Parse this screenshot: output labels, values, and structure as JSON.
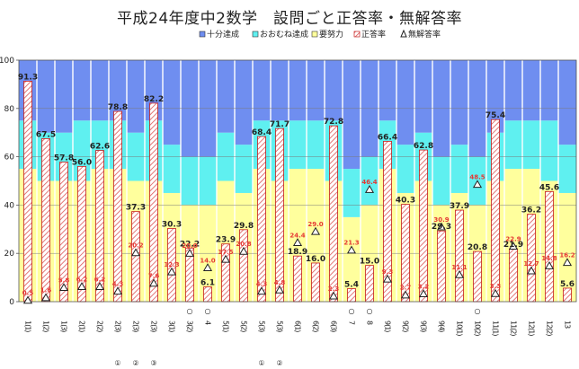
{
  "chart_data": {
    "type": "bar",
    "title": "平成24年度中2数学　設問ごと正答率・無解答率",
    "legend": [
      "十分達成",
      "おおむね達成",
      "要努力",
      "正答率",
      "無解答率"
    ],
    "legend_position": "top-right",
    "ylim": [
      0,
      100
    ],
    "yticks": [
      0,
      20,
      40,
      60,
      80,
      100
    ],
    "grid": true,
    "colors": {
      "sufficient": "#6f8ef0",
      "mostly": "#5ff0f0",
      "effort": "#ffff9d",
      "correct_stroke": "#c41c1c",
      "noanswer": "#222222"
    },
    "categories": [
      {
        "main": "1(1)",
        "mark": "",
        "sub": ""
      },
      {
        "main": "1(2)",
        "mark": "",
        "sub": ""
      },
      {
        "main": "1(3)",
        "mark": "",
        "sub": ""
      },
      {
        "main": "2(1)",
        "mark": "",
        "sub": ""
      },
      {
        "main": "2(2)",
        "mark": "",
        "sub": ""
      },
      {
        "main": "2(3)",
        "mark": "",
        "sub": "①"
      },
      {
        "main": "2(3)",
        "mark": "",
        "sub": "②"
      },
      {
        "main": "2(3)",
        "mark": "",
        "sub": "③"
      },
      {
        "main": "3(1)",
        "mark": "",
        "sub": ""
      },
      {
        "main": "3(2)",
        "mark": "○",
        "sub": ""
      },
      {
        "main": "4",
        "mark": "○",
        "sub": ""
      },
      {
        "main": "5(1)",
        "mark": "",
        "sub": ""
      },
      {
        "main": "5(2)",
        "mark": "",
        "sub": ""
      },
      {
        "main": "5(3)",
        "mark": "",
        "sub": "①"
      },
      {
        "main": "5(3)",
        "mark": "",
        "sub": "②"
      },
      {
        "main": "6(1)",
        "mark": "",
        "sub": ""
      },
      {
        "main": "6(2)",
        "mark": "",
        "sub": ""
      },
      {
        "main": "6(3)",
        "mark": "",
        "sub": ""
      },
      {
        "main": "7",
        "mark": "○",
        "sub": ""
      },
      {
        "main": "8",
        "mark": "○",
        "sub": ""
      },
      {
        "main": "9(1)",
        "mark": "",
        "sub": ""
      },
      {
        "main": "9(2)",
        "mark": "",
        "sub": ""
      },
      {
        "main": "9(3)",
        "mark": "",
        "sub": ""
      },
      {
        "main": "9(4)",
        "mark": "",
        "sub": ""
      },
      {
        "main": "10(1)",
        "mark": "",
        "sub": ""
      },
      {
        "main": "10(2)",
        "mark": "○",
        "sub": ""
      },
      {
        "main": "11(1)",
        "mark": "",
        "sub": ""
      },
      {
        "main": "11(2)",
        "mark": "",
        "sub": ""
      },
      {
        "main": "12(1)",
        "mark": "",
        "sub": ""
      },
      {
        "main": "12(2)",
        "mark": "",
        "sub": ""
      },
      {
        "main": "13",
        "mark": "",
        "sub": ""
      }
    ],
    "bands": [
      {
        "effort": 55,
        "mostly": 75
      },
      {
        "effort": 50,
        "mostly": 70
      },
      {
        "effort": 50,
        "mostly": 70
      },
      {
        "effort": 50,
        "mostly": 75
      },
      {
        "effort": 55,
        "mostly": 75
      },
      {
        "effort": 55,
        "mostly": 75
      },
      {
        "effort": 50,
        "mostly": 70
      },
      {
        "effort": 50,
        "mostly": 75
      },
      {
        "effort": 45,
        "mostly": 65
      },
      {
        "effort": 40,
        "mostly": 60
      },
      {
        "effort": 40,
        "mostly": 60
      },
      {
        "effort": 50,
        "mostly": 70
      },
      {
        "effort": 45,
        "mostly": 65
      },
      {
        "effort": 55,
        "mostly": 75
      },
      {
        "effort": 50,
        "mostly": 75
      },
      {
        "effort": 55,
        "mostly": 75
      },
      {
        "effort": 55,
        "mostly": 75
      },
      {
        "effort": 50,
        "mostly": 75
      },
      {
        "effort": 35,
        "mostly": 55
      },
      {
        "effort": 40,
        "mostly": 60
      },
      {
        "effort": 55,
        "mostly": 75
      },
      {
        "effort": 45,
        "mostly": 65
      },
      {
        "effort": 50,
        "mostly": 70
      },
      {
        "effort": 40,
        "mostly": 60
      },
      {
        "effort": 45,
        "mostly": 65
      },
      {
        "effort": 40,
        "mostly": 60
      },
      {
        "effort": 50,
        "mostly": 70
      },
      {
        "effort": 55,
        "mostly": 75
      },
      {
        "effort": 55,
        "mostly": 75
      },
      {
        "effort": 50,
        "mostly": 75
      },
      {
        "effort": 45,
        "mostly": 65
      }
    ],
    "series": [
      {
        "name": "正答率",
        "values": [
          91.3,
          67.5,
          57.8,
          56.0,
          62.6,
          78.8,
          37.3,
          82.2,
          30.3,
          22.2,
          6.1,
          23.9,
          29.8,
          68.4,
          71.7,
          18.9,
          16.0,
          72.8,
          5.4,
          15.0,
          66.4,
          40.3,
          62.8,
          29.3,
          37.9,
          20.8,
          75.4,
          21.9,
          36.2,
          45.6,
          5.6
        ]
      },
      {
        "name": "無解答率",
        "values": [
          0.5,
          1.6,
          5.8,
          6.2,
          6.2,
          4.3,
          20.2,
          7.6,
          12.3,
          20.0,
          14.0,
          17.5,
          20.8,
          4.3,
          4.8,
          24.4,
          29.0,
          2.3,
          21.3,
          46.4,
          9.3,
          2.7,
          3.2,
          30.9,
          11.1,
          48.5,
          3.3,
          22.9,
          12.7,
          14.8,
          16.2
        ]
      }
    ]
  }
}
